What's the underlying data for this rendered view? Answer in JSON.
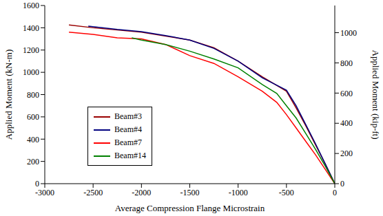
{
  "chart_data": {
    "type": "line",
    "x_label": "Average Compression Flange Microstrain",
    "y_label": "Applied Moment (kN-m)",
    "y2_label": "Applied Moment (kip-ft)",
    "xlim": [
      -3000,
      0
    ],
    "xticks": [
      -3000,
      -2500,
      -2000,
      -1500,
      -1000,
      -500,
      0
    ],
    "ylim": [
      0,
      1600
    ],
    "yticks": [
      0,
      200,
      400,
      600,
      800,
      1000,
      1200,
      1400,
      1600
    ],
    "y2lim": [
      0,
      1180.1
    ],
    "y2ticks": [
      0,
      200,
      400,
      600,
      800,
      1000
    ],
    "grid": false,
    "legend": "lower left",
    "series": [
      {
        "name": "Beam#3",
        "color": "#990000",
        "x": [
          -2750,
          -2500,
          -2000,
          -1500,
          -1250,
          -1000,
          -750,
          -500,
          -400,
          -300,
          -200,
          -100,
          0
        ],
        "values": [
          1425,
          1400,
          1360,
          1290,
          1220,
          1100,
          960,
          830,
          680,
          520,
          350,
          180,
          0
        ]
      },
      {
        "name": "Beam#4",
        "color": "#000080",
        "x": [
          -2550,
          -2250,
          -2000,
          -1750,
          -1500,
          -1250,
          -1000,
          -750,
          -500,
          -400,
          -300,
          -200,
          -100,
          0
        ],
        "values": [
          1415,
          1385,
          1365,
          1330,
          1290,
          1215,
          1100,
          950,
          840,
          700,
          530,
          360,
          180,
          0
        ]
      },
      {
        "name": "Beam#7",
        "color": "#ff0000",
        "x": [
          -2750,
          -2500,
          -2250,
          -2000,
          -1750,
          -1500,
          -1250,
          -1000,
          -750,
          -600,
          -500,
          -400,
          -300,
          -200,
          -100,
          0
        ],
        "values": [
          1360,
          1340,
          1310,
          1300,
          1250,
          1150,
          1080,
          960,
          830,
          730,
          620,
          500,
          380,
          260,
          130,
          0
        ]
      },
      {
        "name": "Beam#14",
        "color": "#008000",
        "x": [
          -2100,
          -2000,
          -1750,
          -1500,
          -1250,
          -1000,
          -750,
          -600,
          -500,
          -400,
          -300,
          -200,
          -100,
          0
        ],
        "values": [
          1310,
          1290,
          1250,
          1190,
          1120,
          1040,
          890,
          810,
          700,
          590,
          450,
          310,
          160,
          0
        ]
      }
    ]
  }
}
